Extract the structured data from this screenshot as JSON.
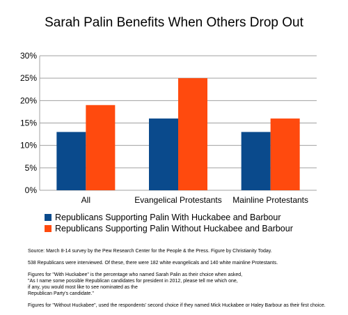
{
  "chart_data": {
    "type": "bar",
    "title": "Sarah Palin Benefits When Others Drop Out",
    "categories": [
      "All",
      "Evangelical Protestants",
      "Mainline Protestants"
    ],
    "series": [
      {
        "name": "Republicans Supporting Palin With Huckabee and Barbour",
        "color": "#0a4a8c",
        "values": [
          13,
          16,
          13
        ]
      },
      {
        "name": "Republicans Supporting Palin Without Huckabee and Barbour",
        "color": "#ff4a0e",
        "values": [
          19,
          25,
          16
        ]
      }
    ],
    "ylim": [
      0,
      30
    ],
    "yticks": [
      0,
      5,
      10,
      15,
      20,
      25,
      30
    ],
    "ytick_labels": [
      "0%",
      "5%",
      "10%",
      "15%",
      "20%",
      "25%",
      "30%"
    ],
    "grid": true,
    "legend_position": "bottom-left",
    "xlabel": "",
    "ylabel": ""
  },
  "notes": [
    "Source:  March 8-14 survey by the Pew Research Center for the People & the Press.  Figure by Christianity Today.",
    "538 Republicans were interviewed.  Of these, there were 182 white evangelicals and 140 white mainline Protestants.",
    "Figures for \"With Huckabee\" is the percentage who named Sarah Palin as their choice when asked,\n\"As I name some possible Republican candidates for president in 2012, please tell me which one,\nif any, you would most like to see nominated as the\nRepublican Party's candidate.\"",
    "Figures for \"Without Huckabee\", used the respondents' second choice if they named Mick Huckabee or Haley Barbour as their first choice."
  ]
}
